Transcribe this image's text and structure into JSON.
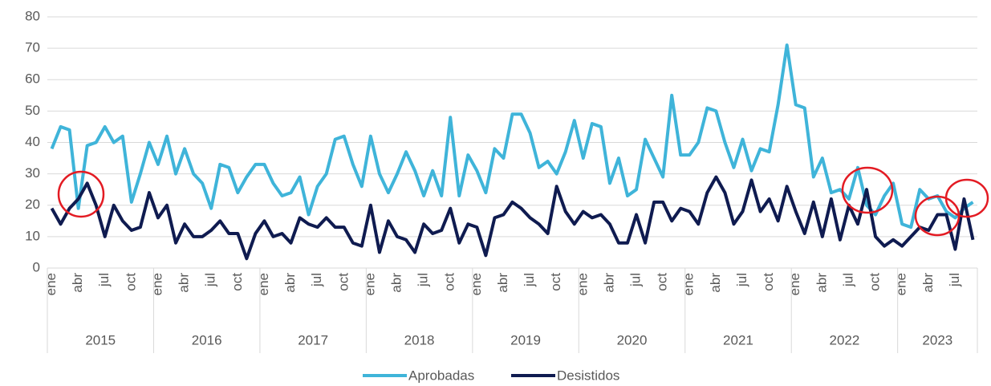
{
  "chart_data": {
    "type": "line",
    "categories": [
      "ene",
      null,
      null,
      "abr",
      null,
      null,
      "jul",
      null,
      null,
      "oct",
      null,
      null,
      "ene",
      null,
      null,
      "abr",
      null,
      null,
      "jul",
      null,
      null,
      "oct",
      null,
      null,
      "ene",
      null,
      null,
      "abr",
      null,
      null,
      "jul",
      null,
      null,
      "oct",
      null,
      null,
      "ene",
      null,
      null,
      "abr",
      null,
      null,
      "jul",
      null,
      null,
      "oct",
      null,
      null,
      "ene",
      null,
      null,
      "abr",
      null,
      null,
      "jul",
      null,
      null,
      "oct",
      null,
      null,
      "ene",
      null,
      null,
      "abr",
      null,
      null,
      "jul",
      null,
      null,
      "oct",
      null,
      null,
      "ene",
      null,
      null,
      "abr",
      null,
      null,
      "jul",
      null,
      null,
      "oct",
      null,
      null,
      "ene",
      null,
      null,
      "abr",
      null,
      null,
      "jul",
      null,
      null,
      "oct",
      null,
      null,
      "ene",
      null,
      null,
      "abr",
      null,
      null,
      "jul",
      null,
      null
    ],
    "years": [
      "2015",
      "2016",
      "2017",
      "2018",
      "2019",
      "2020",
      "2021",
      "2022",
      "2023"
    ],
    "series": [
      {
        "name": "Aprobadas",
        "color": "#3fb4d9",
        "values": [
          38,
          45,
          44,
          19,
          39,
          40,
          45,
          40,
          42,
          21,
          30,
          40,
          33,
          42,
          30,
          38,
          30,
          27,
          19,
          33,
          32,
          24,
          29,
          33,
          33,
          27,
          23,
          24,
          29,
          17,
          26,
          30,
          41,
          42,
          33,
          26,
          42,
          30,
          24,
          30,
          37,
          31,
          23,
          31,
          23,
          48,
          23,
          36,
          31,
          24,
          38,
          35,
          49,
          49,
          43,
          32,
          34,
          30,
          37,
          47,
          35,
          46,
          45,
          27,
          35,
          23,
          25,
          41,
          35,
          29,
          55,
          36,
          36,
          40,
          51,
          50,
          40,
          32,
          41,
          31,
          38,
          37,
          52,
          71,
          52,
          51,
          29,
          35,
          24,
          25,
          22,
          32,
          20,
          17,
          23,
          27,
          14,
          13,
          25,
          22,
          23,
          18,
          16,
          19,
          21
        ]
      },
      {
        "name": "Desistidos",
        "color": "#0f1b50",
        "values": [
          19,
          14,
          19,
          22,
          27,
          20,
          10,
          20,
          15,
          12,
          13,
          24,
          16,
          20,
          8,
          14,
          10,
          10,
          12,
          15,
          11,
          11,
          3,
          11,
          15,
          10,
          11,
          8,
          16,
          14,
          13,
          16,
          13,
          13,
          8,
          7,
          20,
          5,
          15,
          10,
          9,
          5,
          14,
          11,
          12,
          19,
          8,
          14,
          13,
          4,
          16,
          17,
          21,
          19,
          16,
          14,
          11,
          26,
          18,
          14,
          18,
          16,
          17,
          14,
          8,
          8,
          17,
          8,
          21,
          21,
          15,
          19,
          18,
          14,
          24,
          29,
          24,
          14,
          18,
          28,
          18,
          22,
          15,
          26,
          18,
          11,
          21,
          10,
          22,
          9,
          20,
          14,
          25,
          10,
          7,
          9,
          7,
          10,
          13,
          12,
          17,
          17,
          6,
          22,
          9
        ]
      }
    ],
    "ylim": [
      0,
      80
    ],
    "yticks": [
      0,
      10,
      20,
      30,
      40,
      50,
      60,
      70,
      80
    ],
    "grid": true,
    "legend": "bottom"
  }
}
